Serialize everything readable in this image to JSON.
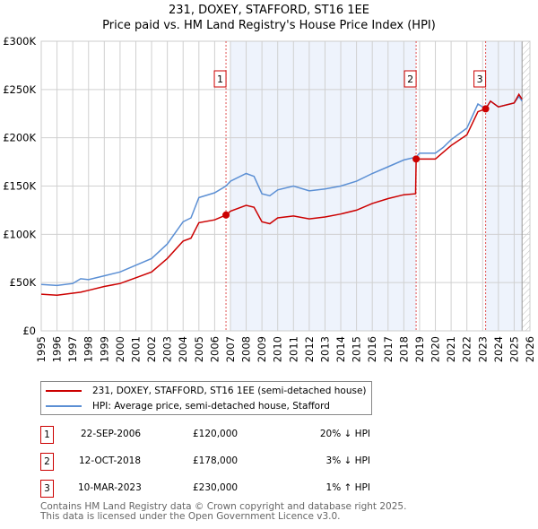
{
  "title": "231, DOXEY, STAFFORD, ST16 1EE",
  "subtitle": "Price paid vs. HM Land Registry's House Price Index (HPI)",
  "chart_data": {
    "type": "line",
    "xlim": [
      1995,
      2026
    ],
    "ylim": [
      0,
      300000
    ],
    "yticks": [
      {
        "v": 0,
        "label": "£0"
      },
      {
        "v": 50000,
        "label": "£50K"
      },
      {
        "v": 100000,
        "label": "£100K"
      },
      {
        "v": 150000,
        "label": "£150K"
      },
      {
        "v": 200000,
        "label": "£200K"
      },
      {
        "v": 250000,
        "label": "£250K"
      },
      {
        "v": 300000,
        "label": "£300K"
      }
    ],
    "xticks": [
      "1995",
      "1996",
      "1997",
      "1998",
      "1999",
      "2000",
      "2001",
      "2002",
      "2003",
      "2004",
      "2005",
      "2006",
      "2007",
      "2008",
      "2009",
      "2010",
      "2011",
      "2012",
      "2013",
      "2014",
      "2015",
      "2016",
      "2017",
      "2018",
      "2019",
      "2020",
      "2021",
      "2022",
      "2023",
      "2024",
      "2025",
      "2026"
    ],
    "colors": {
      "property": "#cc0000",
      "hpi": "#5b8fd4",
      "shade": "#eef3fc"
    },
    "series": [
      {
        "name": "231, DOXEY, STAFFORD, ST16 1EE (semi-detached house)",
        "key": "property",
        "x": [
          1995,
          1996,
          1997,
          1997.5,
          1998,
          1999,
          2000,
          2001,
          2002,
          2003,
          2004,
          2004.5,
          2005,
          2006,
          2006.72,
          2007,
          2008,
          2008.5,
          2009,
          2009.5,
          2010,
          2011,
          2012,
          2013,
          2014,
          2015,
          2016,
          2017,
          2018,
          2018.75,
          2018.78,
          2019,
          2020,
          2020.5,
          2021,
          2022,
          2022.7,
          2023.19,
          2023.5,
          2024,
          2025,
          2025.3,
          2025.5
        ],
        "y": [
          38000,
          37000,
          39000,
          40000,
          42000,
          46000,
          49000,
          55000,
          61000,
          75000,
          93000,
          96000,
          112000,
          115000,
          120000,
          124000,
          130000,
          128000,
          113000,
          111000,
          117000,
          119000,
          116000,
          118000,
          121000,
          125000,
          132000,
          137000,
          141000,
          142000,
          178000,
          178000,
          178000,
          185000,
          192000,
          203000,
          227000,
          230000,
          238000,
          232000,
          236000,
          245000,
          240000
        ]
      },
      {
        "name": "HPI: Average price, semi-detached house, Stafford",
        "key": "hpi",
        "x": [
          1995,
          1996,
          1997,
          1997.5,
          1998,
          1999,
          2000,
          2001,
          2002,
          2003,
          2004,
          2004.5,
          2005,
          2006,
          2006.72,
          2007,
          2008,
          2008.5,
          2009,
          2009.5,
          2010,
          2011,
          2012,
          2013,
          2014,
          2015,
          2016,
          2017,
          2018,
          2018.78,
          2019,
          2020,
          2020.5,
          2021,
          2022,
          2022.7,
          2023.19,
          2023.5,
          2024,
          2025,
          2025.3,
          2025.5
        ],
        "y": [
          48000,
          47000,
          49000,
          54000,
          53000,
          57000,
          61000,
          68000,
          75000,
          90000,
          113000,
          117000,
          138000,
          143000,
          150000,
          155000,
          163000,
          160000,
          142000,
          140000,
          146000,
          150000,
          145000,
          147000,
          150000,
          155000,
          163000,
          170000,
          177000,
          180000,
          184000,
          184000,
          190000,
          198000,
          210000,
          235000,
          230000,
          238000,
          232000,
          236000,
          243000,
          238000
        ]
      }
    ],
    "sales": [
      {
        "id": "1",
        "x": 2006.72,
        "y": 120000,
        "date": "22-SEP-2006",
        "price": "£120,000",
        "hpi": "20% ↓ HPI"
      },
      {
        "id": "2",
        "x": 2018.78,
        "y": 178000,
        "date": "12-OCT-2018",
        "price": "£178,000",
        "hpi": "3% ↓ HPI"
      },
      {
        "id": "3",
        "x": 2023.19,
        "y": 230000,
        "date": "10-MAR-2023",
        "price": "£230,000",
        "hpi": "1% ↑ HPI"
      }
    ],
    "shaded": [
      [
        2007,
        2018.78
      ],
      [
        2023.19,
        2025.5
      ]
    ],
    "forecast_start": 2025.5
  },
  "legend": {
    "property": "231, DOXEY, STAFFORD, ST16 1EE (semi-detached house)",
    "hpi": "HPI: Average price, semi-detached house, Stafford"
  },
  "footer": [
    "Contains HM Land Registry data © Crown copyright and database right 2025.",
    "This data is licensed under the Open Government Licence v3.0."
  ]
}
